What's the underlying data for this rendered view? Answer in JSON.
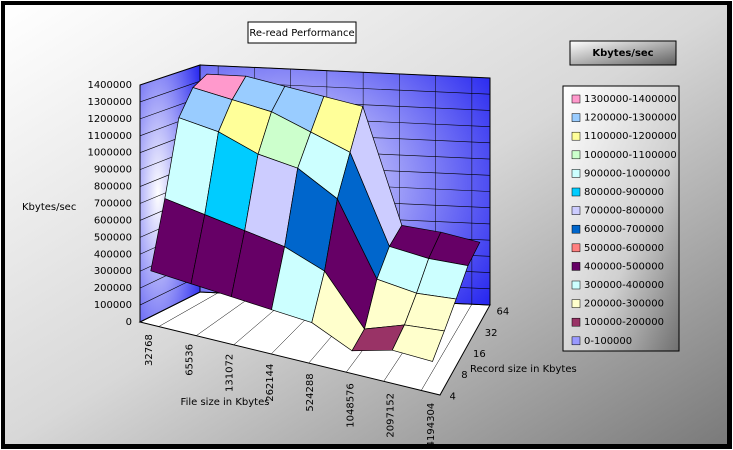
{
  "chart_data": {
    "type": "surface",
    "title": "Re-read Performance",
    "z_label": "Kbytes/sec",
    "x_label": "File size in Kbytes",
    "y_label": "Record size in Kbytes",
    "legend_title": "Kbytes/sec",
    "categories": [
      "32768",
      "65536",
      "131072",
      "262144",
      "524288",
      "1048576",
      "2097152",
      "4194304"
    ],
    "series": [
      {
        "name": "4",
        "values": [
          310000,
          290000,
          270000,
          250000,
          230000,
          120000,
          180000,
          170000
        ]
      },
      {
        "name": "8",
        "values": [
          700000,
          650000,
          600000,
          550000,
          450000,
          150000,
          220000,
          230000
        ]
      },
      {
        "name": "16",
        "values": [
          1150000,
          1100000,
          1000000,
          950000,
          800000,
          350000,
          300000,
          300000
        ]
      },
      {
        "name": "32",
        "values": [
          1300000,
          1250000,
          1200000,
          1100000,
          1000000,
          450000,
          400000,
          380000
        ]
      },
      {
        "name": "64",
        "values": [
          1350000,
          1350000,
          1300000,
          1250000,
          1200000,
          480000,
          450000,
          400000
        ]
      }
    ],
    "zlim": [
      0,
      1400000
    ],
    "zticks": [
      0,
      100000,
      200000,
      300000,
      400000,
      500000,
      600000,
      700000,
      800000,
      900000,
      1000000,
      1100000,
      1200000,
      1300000,
      1400000
    ],
    "bands": [
      {
        "name": "1300000-1400000",
        "min": 1300000,
        "max": 1400000,
        "color": "#ff99cc"
      },
      {
        "name": "1200000-1300000",
        "min": 1200000,
        "max": 1300000,
        "color": "#99ccff"
      },
      {
        "name": "1100000-1200000",
        "min": 1100000,
        "max": 1200000,
        "color": "#ffff99"
      },
      {
        "name": "1000000-1100000",
        "min": 1000000,
        "max": 1100000,
        "color": "#ccffcc"
      },
      {
        "name": "900000-1000000",
        "min": 900000,
        "max": 1000000,
        "color": "#ccffff"
      },
      {
        "name": "800000-900000",
        "min": 800000,
        "max": 900000,
        "color": "#00ccff"
      },
      {
        "name": "700000-800000",
        "min": 700000,
        "max": 800000,
        "color": "#ccccff"
      },
      {
        "name": "600000-700000",
        "min": 600000,
        "max": 700000,
        "color": "#0066cc"
      },
      {
        "name": "500000-600000",
        "min": 500000,
        "max": 600000,
        "color": "#ff8080"
      },
      {
        "name": "400000-500000",
        "min": 400000,
        "max": 500000,
        "color": "#660066"
      },
      {
        "name": "300000-400000",
        "min": 300000,
        "max": 400000,
        "color": "#ccffff"
      },
      {
        "name": "200000-300000",
        "min": 200000,
        "max": 300000,
        "color": "#ffffcc"
      },
      {
        "name": "100000-200000",
        "min": 100000,
        "max": 200000,
        "color": "#993366"
      },
      {
        "name": "0-100000",
        "min": 0,
        "max": 100000,
        "color": "#9999ff"
      }
    ]
  }
}
